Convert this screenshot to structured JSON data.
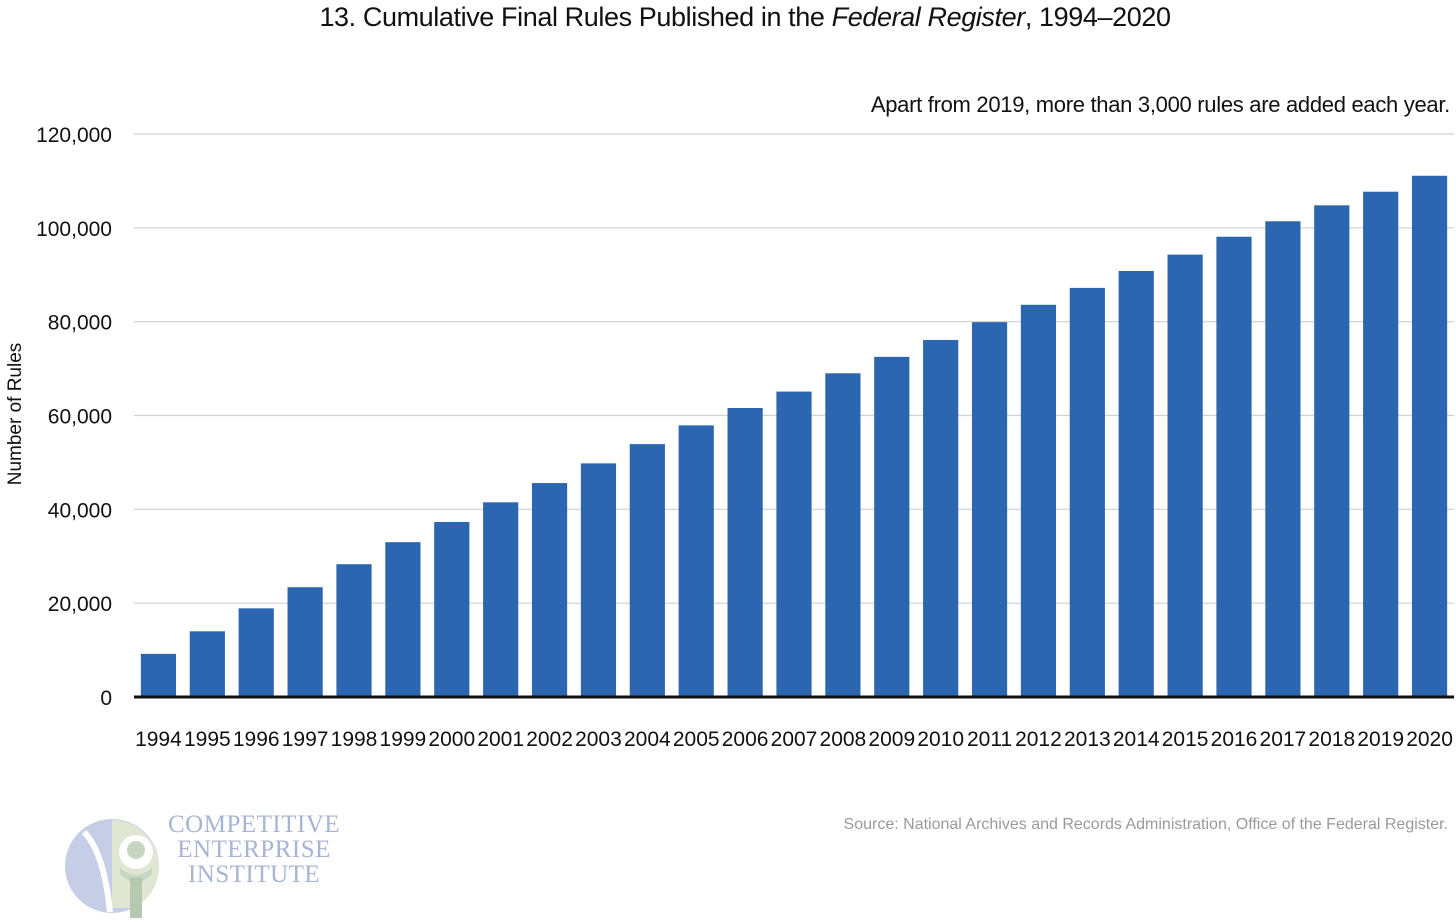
{
  "title": {
    "prefix": "13. Cumulative Final Rules Published in the ",
    "italic": "Federal Register",
    "suffix": ", 1994–2020"
  },
  "annotation": "Apart from 2019, more than 3,000 rules are added each year.",
  "source": "Source: National Archives and Records Administration, Office of the Federal Register.",
  "logo": {
    "line1": "COMPETITIVE",
    "line2": "ENTERPRISE",
    "line3": "INSTITUTE"
  },
  "colors": {
    "bar": "#2d66b0",
    "grid": "#d0d0d0",
    "axis": "#111111"
  },
  "chart_data": {
    "type": "bar",
    "title": "13. Cumulative Final Rules Published in the Federal Register, 1994–2020",
    "xlabel": "",
    "ylabel": "Number of Rules",
    "ylim": [
      0,
      120000
    ],
    "yticks": [
      0,
      20000,
      40000,
      60000,
      80000,
      100000,
      120000
    ],
    "ytick_labels": [
      "0",
      "20,000",
      "40,000",
      "60,000",
      "80,000",
      "100,000",
      "120,000"
    ],
    "grid": true,
    "legend": "none",
    "categories": [
      "1994",
      "1995",
      "1996",
      "1997",
      "1998",
      "1999",
      "2000",
      "2001",
      "2002",
      "2003",
      "2004",
      "2005",
      "2006",
      "2007",
      "2008",
      "2009",
      "2010",
      "2011",
      "2012",
      "2013",
      "2014",
      "2015",
      "2016",
      "2017",
      "2018",
      "2019",
      "2020"
    ],
    "values": [
      9200,
      14000,
      18900,
      23400,
      28300,
      33000,
      37300,
      41500,
      45600,
      49800,
      53900,
      57900,
      61600,
      65100,
      69000,
      72500,
      76100,
      79900,
      83600,
      87200,
      90800,
      94300,
      98100,
      101400,
      104800,
      107700,
      111100
    ]
  }
}
